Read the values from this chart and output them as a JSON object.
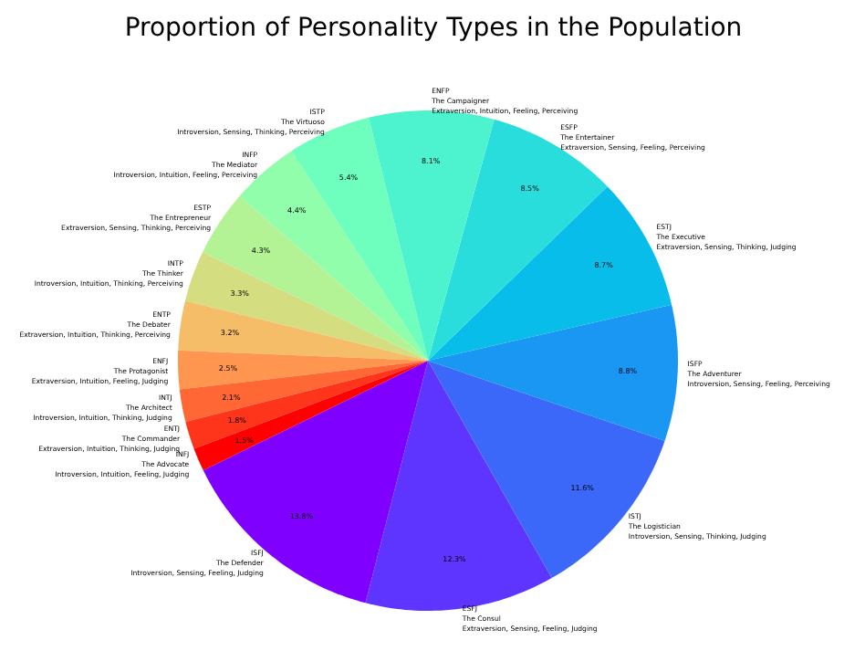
{
  "chart_data": {
    "type": "pie",
    "title": "Proportion of Personality Types in the Population",
    "categories": [
      "ISFJ\nThe Defender\nIntroversion, Sensing, Feeling, Judging",
      "ESFJ\nThe Consul\nExtraversion, Sensing, Feeling, Judging",
      "ISTJ\nThe Logistician\nIntroversion, Sensing, Thinking, Judging",
      "ISFP\nThe Adventurer\nIntroversion, Sensing, Feeling, Perceiving",
      "ESTJ\nThe Executive\nExtraversion, Sensing, Thinking, Judging",
      "ESFP\nThe Entertainer\nExtraversion, Sensing, Feeling, Perceiving",
      "ENFP\nThe Campaigner\nExtraversion, Intuition, Feeling, Perceiving",
      "ISTP\nThe Virtuoso\nIntroversion, Sensing, Thinking, Perceiving",
      "INFP\nThe Mediator\nIntroversion, Intuition, Feeling, Perceiving",
      "ESTP\nThe Entrepreneur\nExtraversion, Sensing, Thinking, Perceiving",
      "INTP\nThe Thinker\nIntroversion, Intuition, Thinking, Perceiving",
      "ENTP\nThe Debater\nExtraversion, Intuition, Thinking, Perceiving",
      "ENFJ\nThe Protagonist\nExtraversion, Intuition, Feeling, Judging",
      "INTJ\nThe Architect\nIntroversion, Intuition, Thinking, Judging",
      "ENTJ\nThe Commander\nExtraversion, Intuition, Thinking, Judging",
      "INFJ\nThe Advocate\nIntroversion, Intuition, Feeling, Judging"
    ],
    "values": [
      13.8,
      12.3,
      11.6,
      8.8,
      8.7,
      8.5,
      8.1,
      5.4,
      4.4,
      4.3,
      3.3,
      3.2,
      2.5,
      2.1,
      1.8,
      1.5
    ],
    "colors": [
      "#8000ff",
      "#5e35fe",
      "#3b68f9",
      "#1a96f3",
      "#08bde9",
      "#2adddd",
      "#4df3ce",
      "#6efebe",
      "#91feab",
      "#b3f396",
      "#d4dd80",
      "#f6bd68",
      "#ff964f",
      "#ff6835",
      "#ff351b",
      "#ff0000"
    ],
    "value_labels": [
      "13.8%",
      "12.3%",
      "11.6%",
      "8.8%",
      "8.7%",
      "8.5%",
      "8.1%",
      "5.4%",
      "4.4%",
      "4.3%",
      "3.3%",
      "3.2%",
      "2.5%",
      "2.1%",
      "1.8%",
      "1.5%"
    ]
  }
}
